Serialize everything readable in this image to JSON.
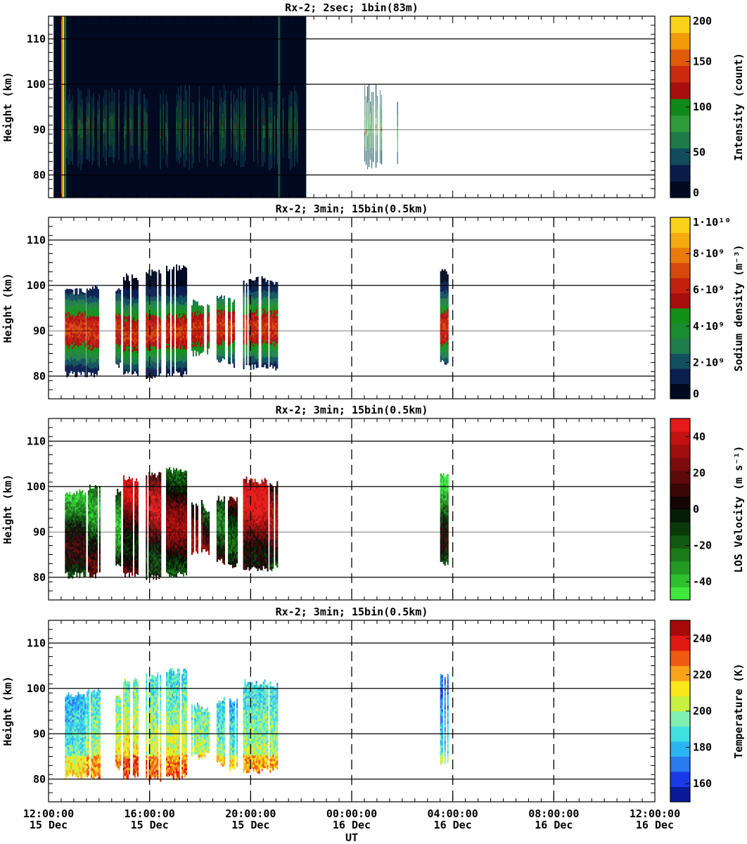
{
  "x_axis": {
    "label": "UT",
    "ticks": [
      {
        "time": "12:00:00",
        "date": "15 Dec",
        "hours": 0
      },
      {
        "time": "16:00:00",
        "date": "15 Dec",
        "hours": 4
      },
      {
        "time": "20:00:00",
        "date": "15 Dec",
        "hours": 8
      },
      {
        "time": "00:00:00",
        "date": "16 Dec",
        "hours": 12
      },
      {
        "time": "04:00:00",
        "date": "16 Dec",
        "hours": 16
      },
      {
        "time": "08:00:00",
        "date": "16 Dec",
        "hours": 20
      },
      {
        "time": "12:00:00",
        "date": "16 Dec",
        "hours": 24
      }
    ]
  },
  "chart_data": [
    {
      "type": "heatmap",
      "title": "Rx-2;  2sec; 1bin(83m)",
      "ylabel": "Height (km)",
      "ylim": [
        75,
        115
      ],
      "yticks": [
        "80",
        "90",
        "100",
        "110"
      ],
      "colorbar": {
        "label": "Intensity (count)",
        "range": [
          0,
          200
        ],
        "ticks": [
          "0",
          "50",
          "100",
          "150",
          "200"
        ],
        "colors": [
          "#020a22",
          "#0a1c4a",
          "#114b5c",
          "#1e7a48",
          "#2e9a3a",
          "#0f8a18",
          "#a80e0e",
          "#cc2a0e",
          "#e05a0a",
          "#f09a0a",
          "#fad21a"
        ]
      },
      "data_coverage_hours": [
        0.2,
        10.2
      ],
      "bright_edge_hours": [
        0.5,
        0.62
      ],
      "layer_segments_hours": [
        [
          0.6,
          2.6
        ],
        [
          2.6,
          4.1
        ],
        [
          4.3,
          4.7
        ],
        [
          5.0,
          6.0
        ],
        [
          6.1,
          7.0
        ],
        [
          7.1,
          7.8
        ],
        [
          8.1,
          9.3
        ],
        [
          9.5,
          9.9
        ],
        [
          12.5,
          13.2
        ],
        [
          13.8,
          13.9
        ]
      ]
    },
    {
      "type": "heatmap",
      "title": "Rx-2; 3min; 15bin(0.5km)",
      "ylabel": "Height (km)",
      "ylim": [
        75,
        115
      ],
      "yticks": [
        "80",
        "90",
        "100",
        "110"
      ],
      "colorbar": {
        "label": "Sodium density (m⁻³)",
        "range": [
          0,
          10000000000.0
        ],
        "ticks": [
          "0",
          "2·10⁹",
          "4·10⁹",
          "6·10⁹",
          "8·10⁹",
          "1·10¹⁰"
        ],
        "colors": [
          "#020a22",
          "#0b1f4e",
          "#12505e",
          "#1f7d4c",
          "#1a8c30",
          "#139018",
          "#a80e0e",
          "#c4200e",
          "#d8480c",
          "#ea7a0c",
          "#f5aa10",
          "#fad21a"
        ]
      },
      "columns": [
        {
          "start": 0.65,
          "end": 1.45,
          "bottom": 80.5,
          "top": 98.5,
          "peak": 90.0
        },
        {
          "start": 1.5,
          "end": 2.05,
          "bottom": 80.5,
          "top": 99.5,
          "peak": 89.5
        },
        {
          "start": 2.65,
          "end": 2.85,
          "bottom": 82.5,
          "top": 98.5,
          "peak": 90.0
        },
        {
          "start": 2.95,
          "end": 3.55,
          "bottom": 80.5,
          "top": 101.5,
          "peak": 89.0
        },
        {
          "start": 3.85,
          "end": 4.45,
          "bottom": 80.0,
          "top": 102.5,
          "peak": 89.5
        },
        {
          "start": 4.65,
          "end": 5.45,
          "bottom": 80.5,
          "top": 103.5,
          "peak": 89.5
        },
        {
          "start": 5.65,
          "end": 6.05,
          "bottom": 85.0,
          "top": 96.0,
          "peak": 90.0
        },
        {
          "start": 6.1,
          "end": 6.35,
          "bottom": 85.5,
          "top": 95.0,
          "peak": 90.0
        },
        {
          "start": 6.65,
          "end": 6.95,
          "bottom": 83.5,
          "top": 97.0,
          "peak": 90.5
        },
        {
          "start": 7.1,
          "end": 7.45,
          "bottom": 82.5,
          "top": 97.0,
          "peak": 90.5
        },
        {
          "start": 7.7,
          "end": 8.65,
          "bottom": 82.0,
          "top": 101.0,
          "peak": 90.5
        },
        {
          "start": 8.75,
          "end": 9.05,
          "bottom": 82.0,
          "top": 100.5,
          "peak": 90.5
        },
        {
          "start": 15.5,
          "end": 15.8,
          "bottom": 83.0,
          "top": 102.5,
          "peak": 90.5
        }
      ]
    },
    {
      "type": "heatmap",
      "title": "Rx-2; 3min; 15bin(0.5km)",
      "ylabel": "Height (km)",
      "ylim": [
        75,
        115
      ],
      "yticks": [
        "80",
        "90",
        "100",
        "110"
      ],
      "colorbar": {
        "label": "LOS Velocity (m s⁻¹)",
        "range": [
          -50,
          50
        ],
        "ticks": [
          "-40",
          "-20",
          "0",
          "20",
          "40"
        ],
        "colors": [
          "#3ee83e",
          "#2ec02e",
          "#249a24",
          "#1a7a1a",
          "#125a12",
          "#0a3a0a",
          "#051c05",
          "#140404",
          "#3a0606",
          "#5c0a0a",
          "#7e0c0c",
          "#a00e0e",
          "#c21212",
          "#e61a1a"
        ]
      },
      "columns": [
        {
          "start": 0.65,
          "end": 1.45,
          "bottom": 80.5,
          "top": 98.5,
          "mean": -15
        },
        {
          "start": 1.5,
          "end": 2.05,
          "bottom": 80.5,
          "top": 99.5,
          "mean": -10
        },
        {
          "start": 2.65,
          "end": 2.85,
          "bottom": 82.5,
          "top": 98.5,
          "mean": -15
        },
        {
          "start": 2.95,
          "end": 3.55,
          "bottom": 80.5,
          "top": 101.5,
          "mean": 20
        },
        {
          "start": 3.85,
          "end": 4.45,
          "bottom": 80.0,
          "top": 102.5,
          "mean": 15
        },
        {
          "start": 4.65,
          "end": 5.45,
          "bottom": 80.5,
          "top": 103.5,
          "mean": 5
        },
        {
          "start": 5.65,
          "end": 6.05,
          "bottom": 85.0,
          "top": 96.0,
          "mean": 10
        },
        {
          "start": 6.1,
          "end": 6.35,
          "bottom": 85.5,
          "top": 95.0,
          "mean": 5
        },
        {
          "start": 6.65,
          "end": 6.95,
          "bottom": 83.5,
          "top": 97.0,
          "mean": 0
        },
        {
          "start": 7.1,
          "end": 7.45,
          "bottom": 82.5,
          "top": 97.0,
          "mean": 5
        },
        {
          "start": 7.7,
          "end": 8.65,
          "bottom": 82.0,
          "top": 101.0,
          "mean": 25
        },
        {
          "start": 8.75,
          "end": 9.05,
          "bottom": 82.0,
          "top": 100.5,
          "mean": 10
        },
        {
          "start": 15.5,
          "end": 15.8,
          "bottom": 83.0,
          "top": 102.5,
          "mean": -20
        }
      ]
    },
    {
      "type": "heatmap",
      "title": "Rx-2; 3min; 15bin(0.5km)",
      "ylabel": "Height (km)",
      "ylim": [
        75,
        115
      ],
      "yticks": [
        "80",
        "90",
        "100",
        "110"
      ],
      "colorbar": {
        "label": "Temperature (K)",
        "range": [
          150,
          250
        ],
        "ticks": [
          "160",
          "180",
          "200",
          "220",
          "240"
        ],
        "colors": [
          "#0a1a9a",
          "#1a3ae6",
          "#2a7af0",
          "#2ab4f0",
          "#40e0e0",
          "#80f0b0",
          "#c8f040",
          "#fae61a",
          "#f8a41a",
          "#f05a12",
          "#e01a12",
          "#a80a0a"
        ]
      },
      "columns": [
        {
          "start": 0.65,
          "end": 1.45,
          "bottom": 80.5,
          "top": 98.5,
          "mean": 185
        },
        {
          "start": 1.5,
          "end": 2.05,
          "bottom": 80.5,
          "top": 99.5,
          "mean": 195
        },
        {
          "start": 2.65,
          "end": 2.85,
          "bottom": 82.5,
          "top": 98.5,
          "mean": 200
        },
        {
          "start": 2.95,
          "end": 3.55,
          "bottom": 80.5,
          "top": 101.5,
          "mean": 205
        },
        {
          "start": 3.85,
          "end": 4.45,
          "bottom": 80.0,
          "top": 102.5,
          "mean": 200
        },
        {
          "start": 4.65,
          "end": 5.45,
          "bottom": 80.5,
          "top": 103.5,
          "mean": 200
        },
        {
          "start": 5.65,
          "end": 6.05,
          "bottom": 85.0,
          "top": 96.0,
          "mean": 195
        },
        {
          "start": 6.1,
          "end": 6.35,
          "bottom": 85.5,
          "top": 95.0,
          "mean": 195
        },
        {
          "start": 6.65,
          "end": 6.95,
          "bottom": 83.5,
          "top": 97.0,
          "mean": 190
        },
        {
          "start": 7.1,
          "end": 7.45,
          "bottom": 82.5,
          "top": 97.0,
          "mean": 185
        },
        {
          "start": 7.7,
          "end": 8.65,
          "bottom": 82.0,
          "top": 101.0,
          "mean": 195
        },
        {
          "start": 8.75,
          "end": 9.05,
          "bottom": 82.0,
          "top": 100.5,
          "mean": 195
        },
        {
          "start": 15.5,
          "end": 15.8,
          "bottom": 83.0,
          "top": 102.5,
          "mean": 180
        }
      ]
    }
  ]
}
